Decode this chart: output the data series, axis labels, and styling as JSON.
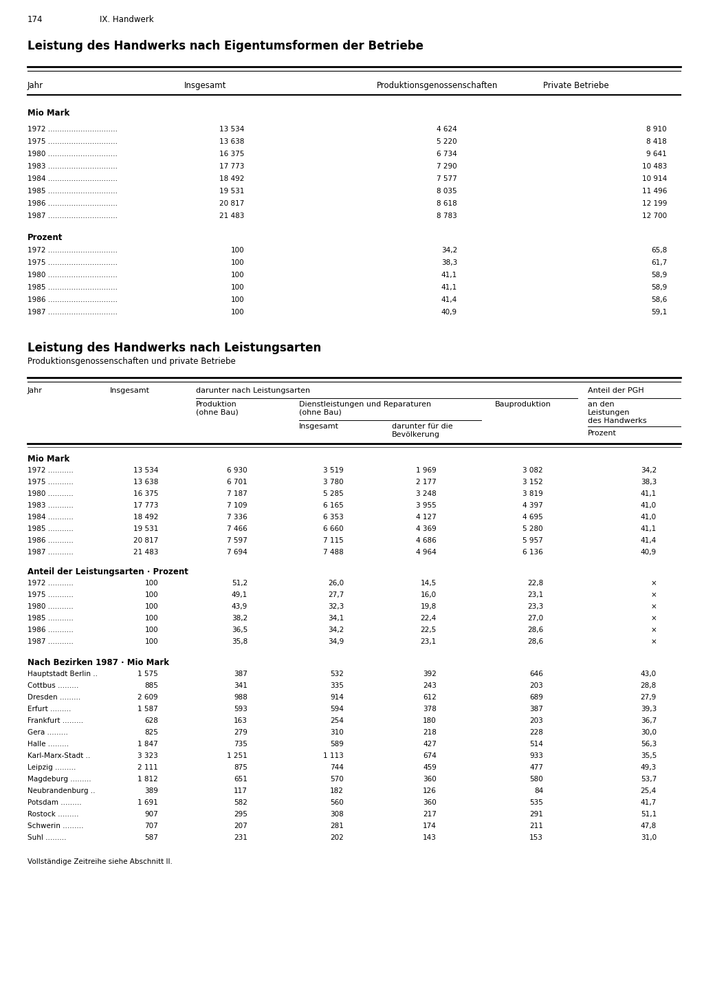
{
  "page_num": "174",
  "chapter": "IX. Handwerk",
  "title1": "Leistung des Handwerks nach Eigentumsformen der Betriebe",
  "title2": "Leistung des Handwerks nach Leistungsarten",
  "subtitle2": "Produktionsgenossenschaften und private Betriebe",
  "footnote": "Vollständige Zeitreihe siehe Abschnitt II.",
  "table1_mio": [
    [
      "1972",
      "13 534",
      "4 624",
      "8 910"
    ],
    [
      "1975",
      "13 638",
      "5 220",
      "8 418"
    ],
    [
      "1980",
      "16 375",
      "6 734",
      "9 641"
    ],
    [
      "1983",
      "17 773",
      "7 290",
      "10 483"
    ],
    [
      "1984",
      "18 492",
      "7 577",
      "10 914"
    ],
    [
      "1985",
      "19 531",
      "8 035",
      "11 496"
    ],
    [
      "1986",
      "20 817",
      "8 618",
      "12 199"
    ],
    [
      "1987",
      "21 483",
      "8 783",
      "12 700"
    ]
  ],
  "table1_prozent": [
    [
      "1972",
      "100",
      "34,2",
      "65,8"
    ],
    [
      "1975",
      "100",
      "38,3",
      "61,7"
    ],
    [
      "1980",
      "100",
      "41,1",
      "58,9"
    ],
    [
      "1985",
      "100",
      "41,1",
      "58,9"
    ],
    [
      "1986",
      "100",
      "41,4",
      "58,6"
    ],
    [
      "1987",
      "100",
      "40,9",
      "59,1"
    ]
  ],
  "table2_mio": [
    [
      "1972",
      "13 534",
      "6 930",
      "3 519",
      "1 969",
      "3 082",
      "34,2"
    ],
    [
      "1975",
      "13 638",
      "6 701",
      "3 780",
      "2 177",
      "3 152",
      "38,3"
    ],
    [
      "1980",
      "16 375",
      "7 187",
      "5 285",
      "3 248",
      "3 819",
      "41,1"
    ],
    [
      "1983",
      "17 773",
      "7 109",
      "6 165",
      "3 955",
      "4 397",
      "41,0"
    ],
    [
      "1984",
      "18 492",
      "7 336",
      "6 353",
      "4 127",
      "4 695",
      "41,0"
    ],
    [
      "1985",
      "19 531",
      "7 466",
      "6 660",
      "4 369",
      "5 280",
      "41,1"
    ],
    [
      "1986",
      "20 817",
      "7 597",
      "7 115",
      "4 686",
      "5 957",
      "41,4"
    ],
    [
      "1987",
      "21 483",
      "7 694",
      "7 488",
      "4 964",
      "6 136",
      "40,9"
    ]
  ],
  "table2_prozent": [
    [
      "1972",
      "100",
      "51,2",
      "26,0",
      "14,5",
      "22,8",
      "×"
    ],
    [
      "1975",
      "100",
      "49,1",
      "27,7",
      "16,0",
      "23,1",
      "×"
    ],
    [
      "1980",
      "100",
      "43,9",
      "32,3",
      "19,8",
      "23,3",
      "×"
    ],
    [
      "1985",
      "100",
      "38,2",
      "34,1",
      "22,4",
      "27,0",
      "×"
    ],
    [
      "1986",
      "100",
      "36,5",
      "34,2",
      "22,5",
      "28,6",
      "×"
    ],
    [
      "1987",
      "100",
      "35,8",
      "34,9",
      "23,1",
      "28,6",
      "×"
    ]
  ],
  "table2_bezirke": [
    [
      "Hauptstadt Berlin",
      "1 575",
      "387",
      "532",
      "392",
      "646",
      "43,0"
    ],
    [
      "Cottbus",
      "885",
      "341",
      "335",
      "243",
      "203",
      "28,8"
    ],
    [
      "Dresden",
      "2 609",
      "988",
      "914",
      "612",
      "689",
      "27,9"
    ],
    [
      "Erfurt",
      "1 587",
      "593",
      "594",
      "378",
      "387",
      "39,3"
    ],
    [
      "Frankfurt",
      "628",
      "163",
      "254",
      "180",
      "203",
      "36,7"
    ],
    [
      "Gera",
      "825",
      "279",
      "310",
      "218",
      "228",
      "30,0"
    ],
    [
      "Halle",
      "1 847",
      "735",
      "589",
      "427",
      "514",
      "56,3"
    ],
    [
      "Karl-Marx-Stadt",
      "3 323",
      "1 251",
      "1 113",
      "674",
      "933",
      "35,5"
    ],
    [
      "Leipzig",
      "2 111",
      "875",
      "744",
      "459",
      "477",
      "49,3"
    ],
    [
      "Magdeburg",
      "1 812",
      "651",
      "570",
      "360",
      "580",
      "53,7"
    ],
    [
      "Neubrandenburg",
      "389",
      "117",
      "182",
      "126",
      "84",
      "25,4"
    ],
    [
      "Potsdam",
      "1 691",
      "582",
      "560",
      "360",
      "535",
      "41,7"
    ],
    [
      "Rostock",
      "907",
      "295",
      "308",
      "217",
      "291",
      "51,1"
    ],
    [
      "Schwerin",
      "707",
      "207",
      "281",
      "174",
      "211",
      "47,8"
    ],
    [
      "Suhl",
      "587",
      "231",
      "202",
      "143",
      "153",
      "31,0"
    ]
  ]
}
